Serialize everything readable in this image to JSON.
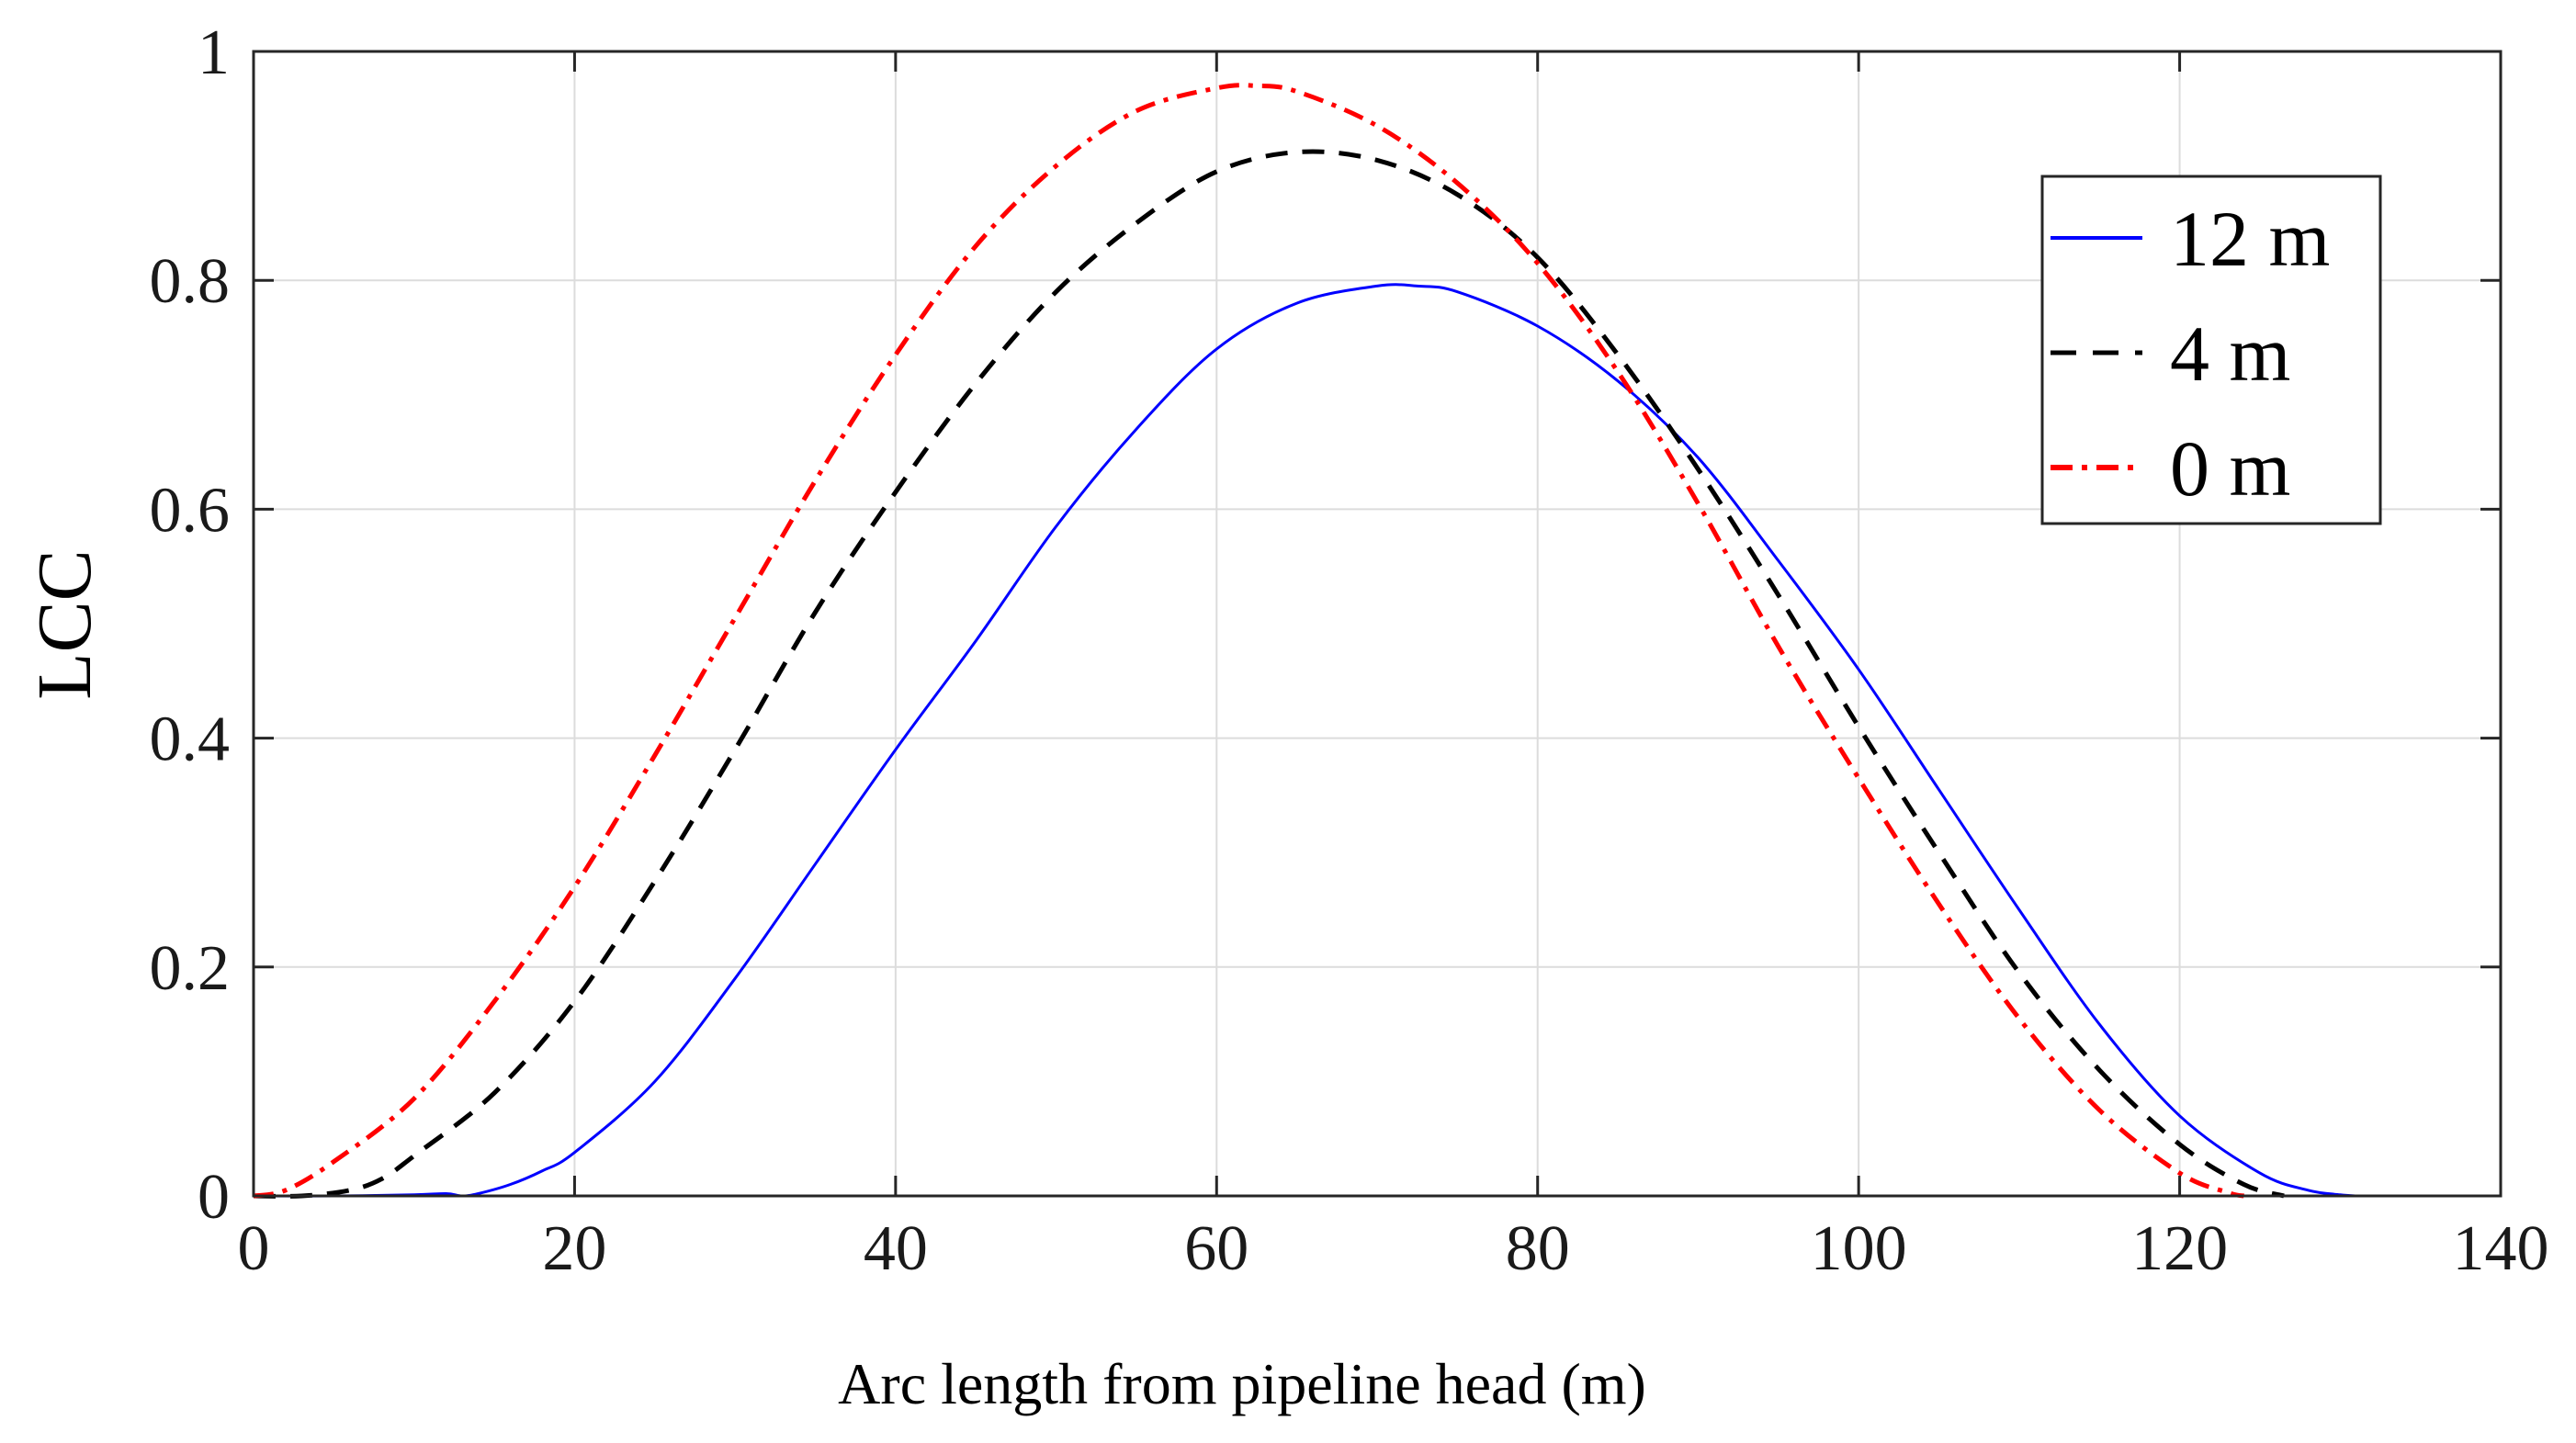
{
  "chart_data": {
    "type": "line",
    "title": "",
    "xlabel": "Arc length from pipeline head (m)",
    "ylabel": "LCC",
    "xlim": [
      0,
      140
    ],
    "ylim": [
      0,
      1
    ],
    "xticks": [
      0,
      20,
      40,
      60,
      80,
      100,
      120,
      140
    ],
    "yticks": [
      0,
      0.2,
      0.4,
      0.6,
      0.8,
      1
    ],
    "xtick_labels": [
      "0",
      "20",
      "40",
      "60",
      "80",
      "100",
      "120",
      "140"
    ],
    "ytick_labels": [
      "0",
      "0.2",
      "0.4",
      "0.6",
      "0.8",
      "1"
    ],
    "grid": true,
    "legend_position": "top-right",
    "series": [
      {
        "name": "12 m",
        "color": "#0000ff",
        "style": "solid",
        "x": [
          0,
          5,
          10,
          12,
          13,
          14,
          16,
          18,
          20,
          25,
          30,
          35,
          40,
          45,
          50,
          55,
          60,
          65,
          70,
          72.5,
          75,
          80,
          85,
          90,
          95,
          100,
          105,
          110,
          115,
          120,
          125,
          128,
          130,
          131
        ],
        "y": [
          0,
          0,
          0.001,
          0.002,
          0,
          0.002,
          0.01,
          0.022,
          0.038,
          0.1,
          0.19,
          0.29,
          0.39,
          0.485,
          0.585,
          0.67,
          0.74,
          0.78,
          0.795,
          0.795,
          0.79,
          0.76,
          0.712,
          0.645,
          0.555,
          0.46,
          0.355,
          0.25,
          0.15,
          0.07,
          0.02,
          0.005,
          0.001,
          0
        ]
      },
      {
        "name": "4 m",
        "color": "#000000",
        "style": "dashed",
        "x": [
          0,
          3,
          6,
          8,
          10,
          15,
          20,
          25,
          30,
          35,
          40,
          45,
          50,
          55,
          60,
          65,
          70,
          75,
          80,
          85,
          90,
          95,
          100,
          105,
          110,
          115,
          120,
          124,
          126.5
        ],
        "y": [
          0,
          0,
          0.005,
          0.015,
          0.035,
          0.09,
          0.17,
          0.275,
          0.39,
          0.51,
          0.615,
          0.71,
          0.79,
          0.85,
          0.895,
          0.912,
          0.905,
          0.875,
          0.82,
          0.735,
          0.635,
          0.525,
          0.41,
          0.3,
          0.195,
          0.11,
          0.045,
          0.01,
          0
        ]
      },
      {
        "name": "0 m",
        "color": "#ff0000",
        "style": "dash-dot",
        "x": [
          0,
          2,
          5,
          10,
          15,
          20,
          25,
          30,
          35,
          40,
          45,
          50,
          55,
          60,
          62.5,
          65,
          70,
          75,
          80,
          85,
          90,
          95,
          100,
          105,
          110,
          115,
          120,
          123,
          124
        ],
        "y": [
          0,
          0.005,
          0.03,
          0.085,
          0.17,
          0.27,
          0.385,
          0.505,
          0.625,
          0.735,
          0.83,
          0.9,
          0.948,
          0.968,
          0.97,
          0.965,
          0.935,
          0.885,
          0.815,
          0.72,
          0.605,
          0.48,
          0.365,
          0.255,
          0.155,
          0.075,
          0.02,
          0.003,
          0
        ]
      }
    ]
  }
}
